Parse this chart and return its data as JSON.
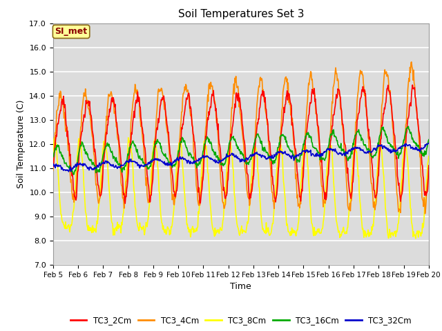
{
  "title": "Soil Temperatures Set 3",
  "xlabel": "Time",
  "ylabel": "Soil Temperature (C)",
  "ylim": [
    7.0,
    17.0
  ],
  "yticks": [
    7.0,
    8.0,
    9.0,
    10.0,
    11.0,
    12.0,
    13.0,
    14.0,
    15.0,
    16.0,
    17.0
  ],
  "date_labels": [
    "Feb 5",
    "Feb 6",
    "Feb 7",
    "Feb 8",
    "Feb 9",
    "Feb 10",
    "Feb 11",
    "Feb 12",
    "Feb 13",
    "Feb 14",
    "Feb 15",
    "Feb 16",
    "Feb 17",
    "Feb 18",
    "Feb 19",
    "Feb 20"
  ],
  "annotation_text": "SI_met",
  "annotation_color": "#8B0000",
  "annotation_bg": "#FFFF99",
  "series": {
    "TC3_2Cm": {
      "color": "#FF0000",
      "lw": 1.2
    },
    "TC3_4Cm": {
      "color": "#FF8C00",
      "lw": 1.2
    },
    "TC3_8Cm": {
      "color": "#FFFF00",
      "lw": 1.2
    },
    "TC3_16Cm": {
      "color": "#00AA00",
      "lw": 1.2
    },
    "TC3_32Cm": {
      "color": "#0000CC",
      "lw": 1.2
    }
  },
  "background_color": "#DCDCDC",
  "grid_color": "#FFFFFF",
  "figsize": [
    6.4,
    4.8
  ],
  "dpi": 100
}
